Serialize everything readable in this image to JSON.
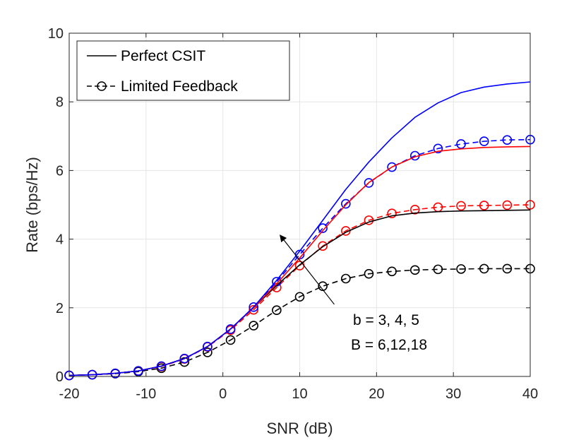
{
  "chart_data": {
    "type": "line",
    "xlabel": "SNR (dB)",
    "ylabel": "Rate (bps/Hz)",
    "xlim": [
      -20,
      40
    ],
    "ylim": [
      0,
      10
    ],
    "xticks": [
      -20,
      -10,
      0,
      10,
      20,
      30,
      40
    ],
    "yticks": [
      0,
      2,
      4,
      6,
      8,
      10
    ],
    "xtick_labels": [
      "-20",
      "-10",
      "0",
      "10",
      "20",
      "30",
      "40"
    ],
    "ytick_labels": [
      "0",
      "2",
      "4",
      "6",
      "8",
      "10"
    ],
    "grid": true,
    "x": [
      -20,
      -17,
      -14,
      -11,
      -8,
      -5,
      -2,
      1,
      4,
      7,
      10,
      13,
      16,
      19,
      22,
      25,
      28,
      31,
      34,
      37,
      40
    ],
    "legend": {
      "position": "top-left",
      "entries": [
        {
          "label": "Perfect CSIT",
          "style": "solid"
        },
        {
          "label": "Limited Feedback",
          "style": "dashed-circle"
        }
      ]
    },
    "series": [
      {
        "name": "Perfect CSIT b=3",
        "color": "#000000",
        "style": "solid",
        "values": [
          0.03,
          0.05,
          0.09,
          0.16,
          0.3,
          0.52,
          0.87,
          1.38,
          2.0,
          2.65,
          3.25,
          3.78,
          4.2,
          4.5,
          4.68,
          4.76,
          4.8,
          4.82,
          4.83,
          4.84,
          4.85
        ]
      },
      {
        "name": "Perfect CSIT b=4",
        "color": "#ff0000",
        "style": "solid",
        "values": [
          0.03,
          0.05,
          0.09,
          0.16,
          0.3,
          0.52,
          0.87,
          1.38,
          2.0,
          2.7,
          3.45,
          4.25,
          5.0,
          5.65,
          6.1,
          6.4,
          6.56,
          6.63,
          6.67,
          6.69,
          6.7
        ]
      },
      {
        "name": "Perfect CSIT b=5",
        "color": "#0000ff",
        "style": "solid",
        "values": [
          0.03,
          0.05,
          0.09,
          0.16,
          0.3,
          0.52,
          0.87,
          1.38,
          2.02,
          2.8,
          3.65,
          4.55,
          5.45,
          6.25,
          6.95,
          7.55,
          7.97,
          8.27,
          8.43,
          8.52,
          8.58
        ]
      },
      {
        "name": "Limited Feedback B=6",
        "color": "#000000",
        "style": "dashed-circle",
        "values": [
          0.03,
          0.05,
          0.08,
          0.14,
          0.24,
          0.42,
          0.7,
          1.06,
          1.48,
          1.93,
          2.32,
          2.63,
          2.85,
          2.99,
          3.06,
          3.1,
          3.12,
          3.13,
          3.14,
          3.14,
          3.14
        ]
      },
      {
        "name": "Limited Feedback B=12",
        "color": "#ff0000",
        "style": "dashed-circle",
        "values": [
          0.03,
          0.05,
          0.09,
          0.16,
          0.29,
          0.51,
          0.86,
          1.35,
          1.94,
          2.59,
          3.23,
          3.8,
          4.24,
          4.55,
          4.75,
          4.86,
          4.93,
          4.97,
          4.98,
          4.99,
          5.0
        ]
      },
      {
        "name": "Limited Feedback B=18",
        "color": "#0000ff",
        "style": "dashed-circle",
        "values": [
          0.03,
          0.05,
          0.09,
          0.16,
          0.3,
          0.52,
          0.87,
          1.38,
          2.02,
          2.76,
          3.55,
          4.32,
          5.03,
          5.64,
          6.1,
          6.43,
          6.64,
          6.77,
          6.85,
          6.89,
          6.9
        ]
      }
    ],
    "annotation": {
      "line1": "b = 3,  4,  5",
      "line2": "B = 6,12,18",
      "arrow_from": [
        14.5,
        2.1
      ],
      "arrow_to": [
        7.5,
        4.1
      ]
    }
  }
}
